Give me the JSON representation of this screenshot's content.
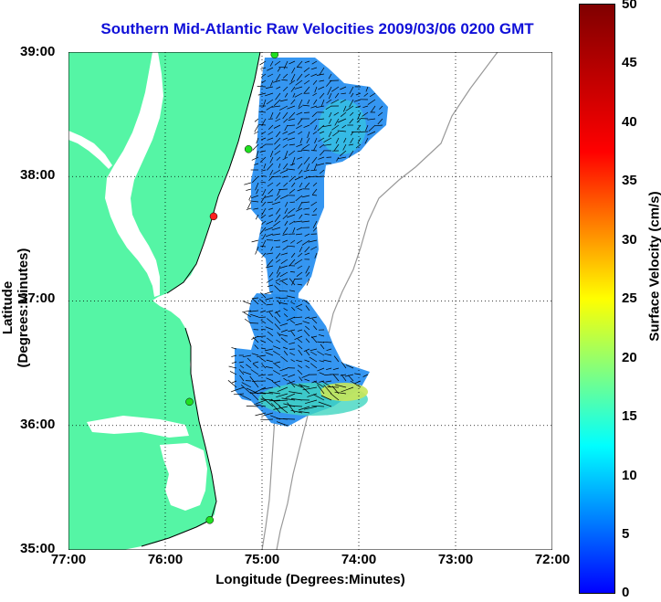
{
  "title": "Southern Mid-Atlantic Raw Velocities 2009/03/06 0200 GMT",
  "xlabel": "Longitude (Degrees:Minutes)",
  "ylabel": "Latitude (Degrees:Minutes)",
  "colorbar_label": "Surface Velocity (cm/s)",
  "colors": {
    "land": "#55f5a5",
    "title": "#1010d8",
    "bathymetry": "#999999"
  },
  "chart_data": {
    "type": "heatmap",
    "map_kind": "surface current vector map",
    "xlim": [
      -77,
      -72
    ],
    "ylim": [
      35,
      39
    ],
    "x_tick_labels": [
      "77:00",
      "76:00",
      "75:00",
      "74:00",
      "73:00",
      "72:00"
    ],
    "y_tick_labels": [
      "39:00",
      "38:00",
      "37:00",
      "36:00",
      "35:00"
    ],
    "grid": true,
    "colorbar": {
      "range": [
        0,
        50
      ],
      "tick_labels": [
        "50",
        "45",
        "40",
        "35",
        "30",
        "25",
        "20",
        "15",
        "10",
        "5",
        "0"
      ]
    },
    "observed_speed_range_cm_s": [
      3,
      22
    ],
    "hf_radar_sites": [
      {
        "lon": -74.87,
        "lat": 38.98,
        "color": "green"
      },
      {
        "lon": -75.14,
        "lat": 38.22,
        "color": "green"
      },
      {
        "lon": -75.5,
        "lat": 37.68,
        "color": "red"
      },
      {
        "lon": -75.75,
        "lat": 36.19,
        "color": "green"
      },
      {
        "lon": -75.54,
        "lat": 35.24,
        "color": "green"
      }
    ]
  }
}
